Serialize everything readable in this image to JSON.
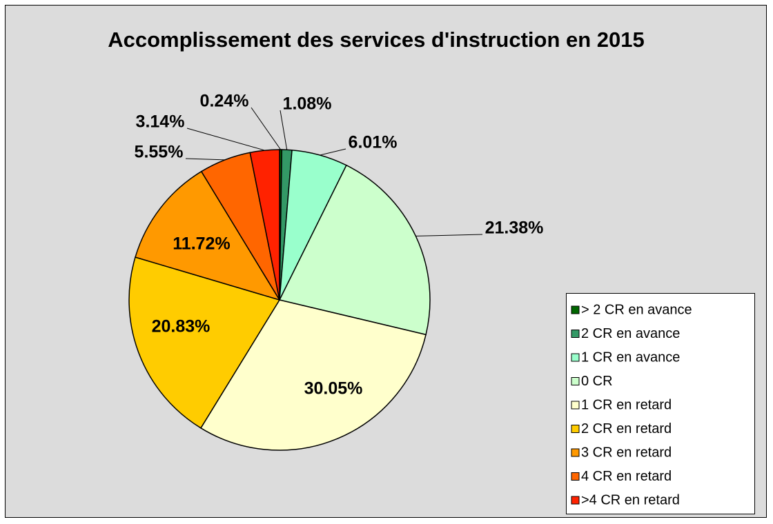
{
  "chart_data": {
    "type": "pie",
    "title": "Accomplissement des services d'instruction en 2015",
    "categories": [
      "> 2 CR en avance",
      "2 CR en avance",
      "1 CR en avance",
      "0 CR",
      "1 CR en retard",
      "2 CR en retard",
      "3 CR en retard",
      "4 CR en retard",
      ">4 CR en retard"
    ],
    "values": [
      0.24,
      1.08,
      6.01,
      21.38,
      30.05,
      20.83,
      11.72,
      5.55,
      3.14
    ],
    "value_labels": [
      "0.24%",
      "1.08%",
      "6.01%",
      "21.38%",
      "30.05%",
      "20.83%",
      "11.72%",
      "5.55%",
      "3.14%"
    ],
    "colors": [
      "#006600",
      "#339966",
      "#99ffcc",
      "#ccffcc",
      "#ffffcc",
      "#ffcc00",
      "#ff9900",
      "#ff6600",
      "#ff2200"
    ],
    "legend": "right"
  }
}
